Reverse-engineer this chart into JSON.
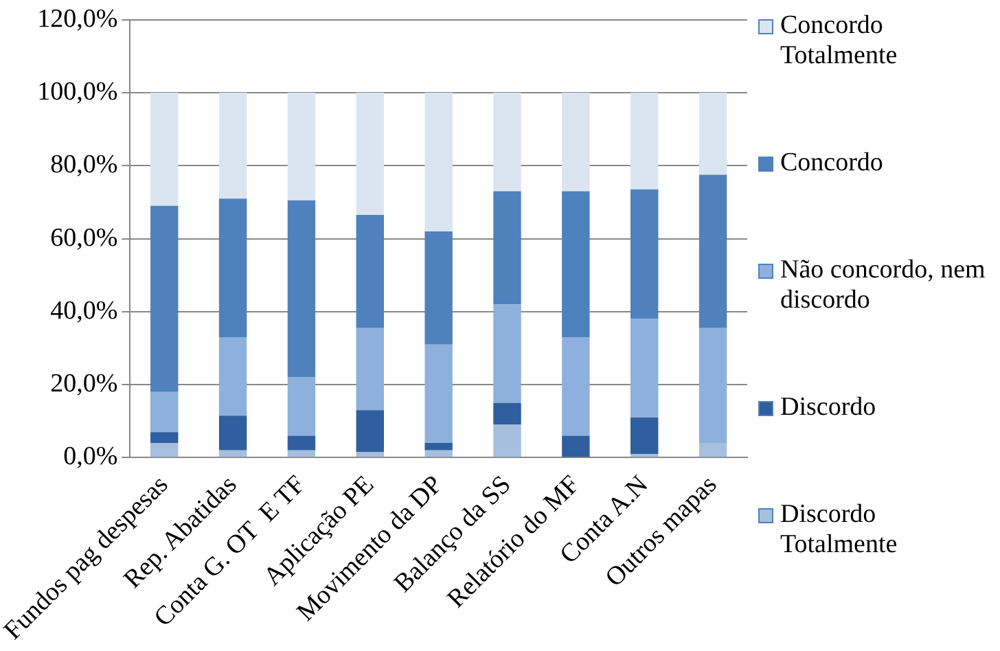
{
  "chart_data": {
    "type": "bar",
    "stacked": true,
    "grid": "y",
    "legend": "right",
    "categories": [
      "Fundos pag despesas",
      "Rep. Abatidas",
      "Conta G. OT  E TF",
      "Aplicação PE",
      "Movimento da DP",
      "Balanço da SS",
      "Relatório do MF",
      "Conta A.N",
      "Outros mapas"
    ],
    "ylim": [
      0,
      120
    ],
    "yticks": [
      {
        "value": 0,
        "label": "0,0%"
      },
      {
        "value": 20,
        "label": "20,0%"
      },
      {
        "value": 40,
        "label": "40,0%"
      },
      {
        "value": 60,
        "label": "60,0%"
      },
      {
        "value": 80,
        "label": "80,0%"
      },
      {
        "value": 100,
        "label": "100,0%"
      },
      {
        "value": 120,
        "label": "120,0%"
      }
    ],
    "series": [
      {
        "name": "Discordo Totalmente",
        "color": "#a7bfde",
        "values": [
          4,
          2,
          2,
          1.5,
          2,
          9,
          0,
          1,
          4
        ]
      },
      {
        "name": "Discordo",
        "color": "#2f5f9e",
        "values": [
          3,
          9.5,
          4,
          11.5,
          2,
          6,
          6,
          10,
          0
        ]
      },
      {
        "name": "Não concordo, nem discordo",
        "color": "#8eb0dc",
        "values": [
          11,
          21.5,
          16,
          22.5,
          27,
          27,
          27,
          27,
          31.5
        ]
      },
      {
        "name": "Concordo",
        "color": "#4f81bd",
        "values": [
          51,
          38,
          48.5,
          31,
          31,
          31,
          40,
          35.5,
          42
        ]
      },
      {
        "name": "Concordo Totalmente",
        "color": "#dbe5f1",
        "values": [
          31,
          29,
          29.5,
          33.5,
          38,
          27,
          27,
          26.5,
          22.5
        ]
      }
    ]
  }
}
